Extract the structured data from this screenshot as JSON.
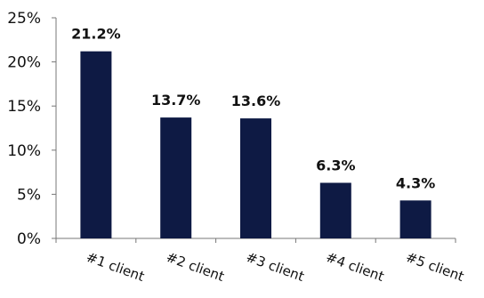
{
  "chart_data": {
    "type": "bar",
    "categories": [
      "#1 client",
      "#2 client",
      "#3 client",
      "#4 client",
      "#5 client"
    ],
    "values": [
      21.2,
      13.7,
      13.6,
      6.3,
      4.3
    ],
    "data_labels": [
      "21.2%",
      "13.7%",
      "13.6%",
      "6.3%",
      "4.3%"
    ],
    "title": "",
    "xlabel": "",
    "ylabel": "",
    "ylim": [
      0,
      25
    ],
    "yticks": [
      0,
      5,
      10,
      15,
      20,
      25
    ],
    "ytick_labels": [
      "0%",
      "5%",
      "10%",
      "15%",
      "20%",
      "25%"
    ],
    "grid": false,
    "legend": "none",
    "colors": {
      "bar": "#0e1a44",
      "axis": "#777777",
      "text": "#111111"
    }
  }
}
